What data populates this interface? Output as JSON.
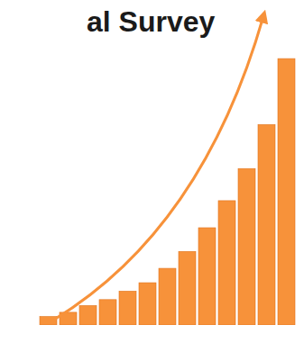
{
  "chart_data": {
    "type": "bar",
    "title": "al Survey",
    "categories": [
      null,
      null,
      null,
      null,
      null,
      null,
      null,
      null,
      null,
      null,
      null,
      null,
      null
    ],
    "values": [
      10,
      15,
      23,
      30,
      40,
      50,
      67,
      87,
      115,
      147,
      185,
      237,
      315
    ],
    "color": "#f7923a",
    "ylim": [
      0,
      330
    ],
    "tick_labels": false
  }
}
